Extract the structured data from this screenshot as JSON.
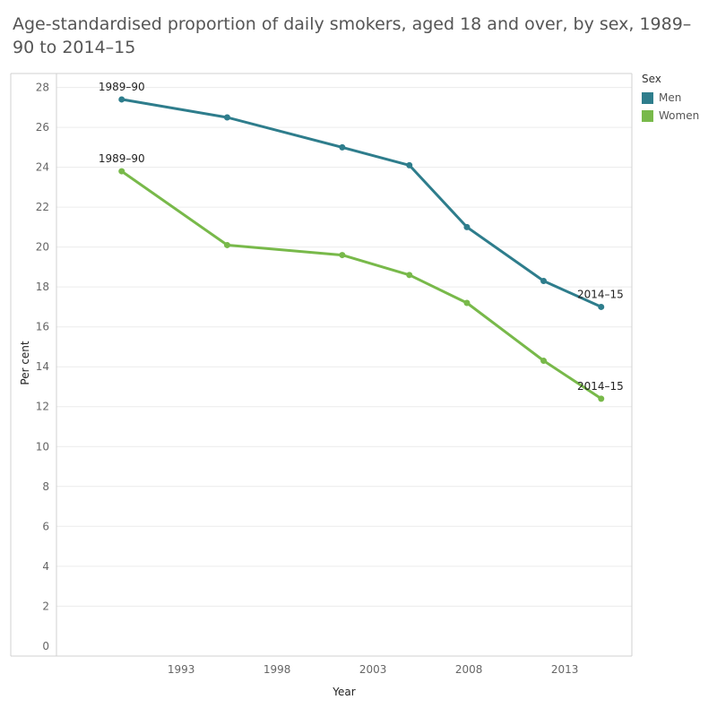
{
  "title": "Age-standardised proportion of daily smokers, aged 18 and over, by sex, 1989–90 to 2014–15",
  "legend": {
    "title": "Sex",
    "items": [
      {
        "label": "Men",
        "color": "#2e7d8c"
      },
      {
        "label": "Women",
        "color": "#78b94a"
      }
    ]
  },
  "chart_data": {
    "type": "line",
    "xlabel": "Year",
    "ylabel": "Per cent",
    "xlim": [
      1986.5,
      2016.5
    ],
    "ylim": [
      -0.5,
      28.7
    ],
    "x_ticks": [
      1993,
      1998,
      2003,
      2008,
      2013
    ],
    "y_ticks": [
      0,
      2,
      4,
      6,
      8,
      10,
      12,
      14,
      16,
      18,
      20,
      22,
      24,
      26,
      28
    ],
    "grid": true,
    "legend_position": "top-right",
    "series": [
      {
        "name": "Men",
        "color": "#2e7d8c",
        "x": [
          1989.9,
          1995.4,
          2001.4,
          2004.9,
          2007.9,
          2011.9,
          2014.9
        ],
        "values": [
          27.4,
          26.5,
          25.0,
          24.1,
          21.0,
          18.3,
          17.0
        ]
      },
      {
        "name": "Women",
        "color": "#78b94a",
        "x": [
          1989.9,
          1995.4,
          2001.4,
          2004.9,
          2007.9,
          2011.9,
          2014.9
        ],
        "values": [
          23.8,
          20.1,
          19.6,
          18.6,
          17.2,
          14.3,
          12.4
        ]
      }
    ],
    "annotations": [
      {
        "text": "1989–90",
        "series": "Men",
        "x": 1989.9,
        "y": 27.4
      },
      {
        "text": "1989–90",
        "series": "Women",
        "x": 1989.9,
        "y": 23.8
      },
      {
        "text": "2014–15",
        "series": "Men",
        "x": 2014.9,
        "y": 17.0
      },
      {
        "text": "2014–15",
        "series": "Women",
        "x": 2014.9,
        "y": 12.4
      }
    ]
  }
}
